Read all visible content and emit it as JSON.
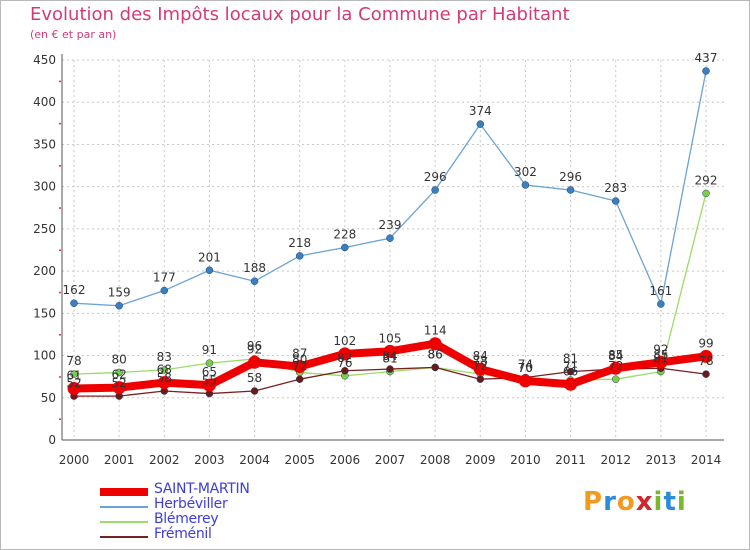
{
  "page": {
    "title": "Evolution des Impôts locaux pour la Commune par Habitant",
    "subtitle": "(en € et par an)",
    "logo_text": "Proxiti"
  },
  "colors": {
    "title": "#d63a76",
    "grid": "#c8c8c8",
    "tick_marker": "#d63a76",
    "legend_text": "#3d3dd9"
  },
  "chart_data": {
    "type": "line",
    "title": "Evolution des Impôts locaux pour la Commune par Habitant",
    "subtitle": "(en € et par an)",
    "xlabel": "",
    "ylabel": "",
    "ylim": [
      0,
      450
    ],
    "y_ticks": [
      0,
      50,
      100,
      150,
      200,
      250,
      300,
      350,
      400,
      450
    ],
    "grid": true,
    "legend_position": "bottom-left",
    "categories": [
      "2000",
      "2001",
      "2002",
      "2003",
      "2004",
      "2005",
      "2006",
      "2007",
      "2008",
      "2009",
      "2010",
      "2011",
      "2012",
      "2013",
      "2014"
    ],
    "series": [
      {
        "name": "Herbéviller",
        "color": "#6aa3d5",
        "marker": "#3a7fc1",
        "width": 1.3,
        "values": [
          162,
          159,
          177,
          201,
          188,
          218,
          228,
          239,
          296,
          374,
          302,
          296,
          283,
          161,
          437
        ],
        "labels": [
          "162",
          "159",
          "177",
          "201",
          "188",
          "218",
          "228",
          "239",
          "296",
          "374",
          "302",
          "296",
          "283",
          "161",
          "437"
        ]
      },
      {
        "name": "Blémerey",
        "color": "#99dc68",
        "marker": "#7ccf45",
        "width": 1.3,
        "values": [
          78,
          80,
          83,
          91,
          96,
          80,
          76,
          81,
          86,
          78,
          70,
          71,
          72,
          81,
          292
        ],
        "labels": [
          "78",
          "80",
          "83",
          "91",
          "96",
          "80",
          "76",
          "81",
          "86",
          "78",
          "70",
          "71",
          "72",
          "81",
          "292"
        ]
      },
      {
        "name": "Fréménil",
        "color": "#7a2020",
        "marker": "#6b1818",
        "width": 1.3,
        "values": [
          52,
          52,
          58,
          55,
          58,
          72,
          82,
          84,
          86,
          72,
          74,
          81,
          84,
          85,
          78
        ],
        "labels": [
          "52",
          "52",
          "58",
          "55",
          "58",
          "72",
          "82",
          "84",
          "86",
          "72",
          "74",
          "81",
          "84",
          "85",
          "78"
        ]
      },
      {
        "name": "SAINT-MARTIN",
        "color": "#ee0000",
        "marker": "#ee0000",
        "width": 8,
        "values": [
          61,
          62,
          68,
          65,
          92,
          87,
          102,
          105,
          114,
          84,
          70,
          66,
          85,
          92,
          99
        ],
        "labels": [
          "61",
          "62",
          "68",
          "65",
          "92",
          "87",
          "102",
          "105",
          "114",
          "84",
          "70",
          "66",
          "85",
          "92",
          "99"
        ]
      }
    ],
    "legend": [
      {
        "name": "SAINT-MARTIN",
        "color": "#ee0000",
        "thickness": 8
      },
      {
        "name": "Herbéviller",
        "color": "#6aa3d5",
        "thickness": 2
      },
      {
        "name": "Blémerey",
        "color": "#99dc68",
        "thickness": 2
      },
      {
        "name": "Fréménil",
        "color": "#7a2020",
        "thickness": 2
      }
    ]
  }
}
